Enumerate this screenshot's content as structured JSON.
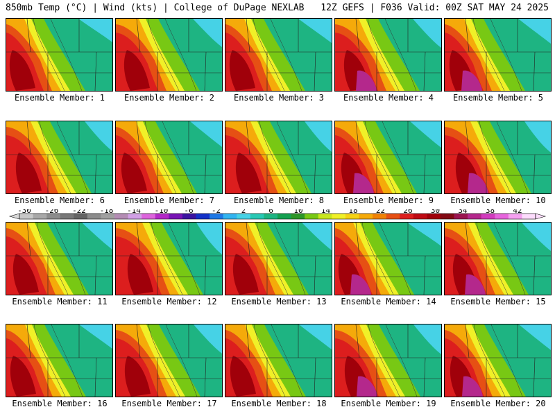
{
  "header": {
    "left": "850mb Temp (°C) | Wind (kts) | College of DuPage NEXLAB",
    "right": "12Z GEFS | F036 Valid: 00Z SAT MAY 24 2025"
  },
  "panels": [
    {
      "label": "Ensemble Member: 1"
    },
    {
      "label": "Ensemble Member: 2"
    },
    {
      "label": "Ensemble Member: 3"
    },
    {
      "label": "Ensemble Member: 4"
    },
    {
      "label": "Ensemble Member: 5"
    },
    {
      "label": "Ensemble Member: 6"
    },
    {
      "label": "Ensemble Member: 7"
    },
    {
      "label": "Ensemble Member: 8"
    },
    {
      "label": "Ensemble Member: 9"
    },
    {
      "label": "Ensemble Member: 10"
    },
    {
      "label": "Ensemble Member: 11"
    },
    {
      "label": "Ensemble Member: 12"
    },
    {
      "label": "Ensemble Member: 13"
    },
    {
      "label": "Ensemble Member: 14"
    },
    {
      "label": "Ensemble Member: 15"
    },
    {
      "label": "Ensemble Member: 16"
    },
    {
      "label": "Ensemble Member: 17"
    },
    {
      "label": "Ensemble Member: 18"
    },
    {
      "label": "Ensemble Member: 19"
    },
    {
      "label": "Ensemble Member: 20"
    }
  ],
  "colorbar": {
    "labels": [
      "-30",
      "-26",
      "-22",
      "-18",
      "-14",
      "-10",
      "-6",
      "-2",
      "2",
      "6",
      "10",
      "14",
      "18",
      "22",
      "26",
      "30",
      "34",
      "38",
      "42"
    ],
    "colors": [
      "#c8c8c8",
      "#a8a8a8",
      "#8c8c8c",
      "#787878",
      "#646464",
      "#8c8c8c",
      "#a0a0a0",
      "#b48cb4",
      "#d2a0e6",
      "#dc64dc",
      "#b428c8",
      "#7814b4",
      "#3c14a0",
      "#1432c8",
      "#1e78e6",
      "#32b4f0",
      "#46d2e6",
      "#28c8b4",
      "#1eb482",
      "#14a050",
      "#2d9628",
      "#78c814",
      "#c8e61e",
      "#f0f028",
      "#f5d214",
      "#f5aa0a",
      "#f08205",
      "#e65014",
      "#dc1e1e",
      "#be0a14",
      "#a0000a",
      "#820a14",
      "#9b1450",
      "#b4288c",
      "#d23cbe",
      "#e664dc",
      "#f5a0f0",
      "#fcdcfc"
    ]
  }
}
